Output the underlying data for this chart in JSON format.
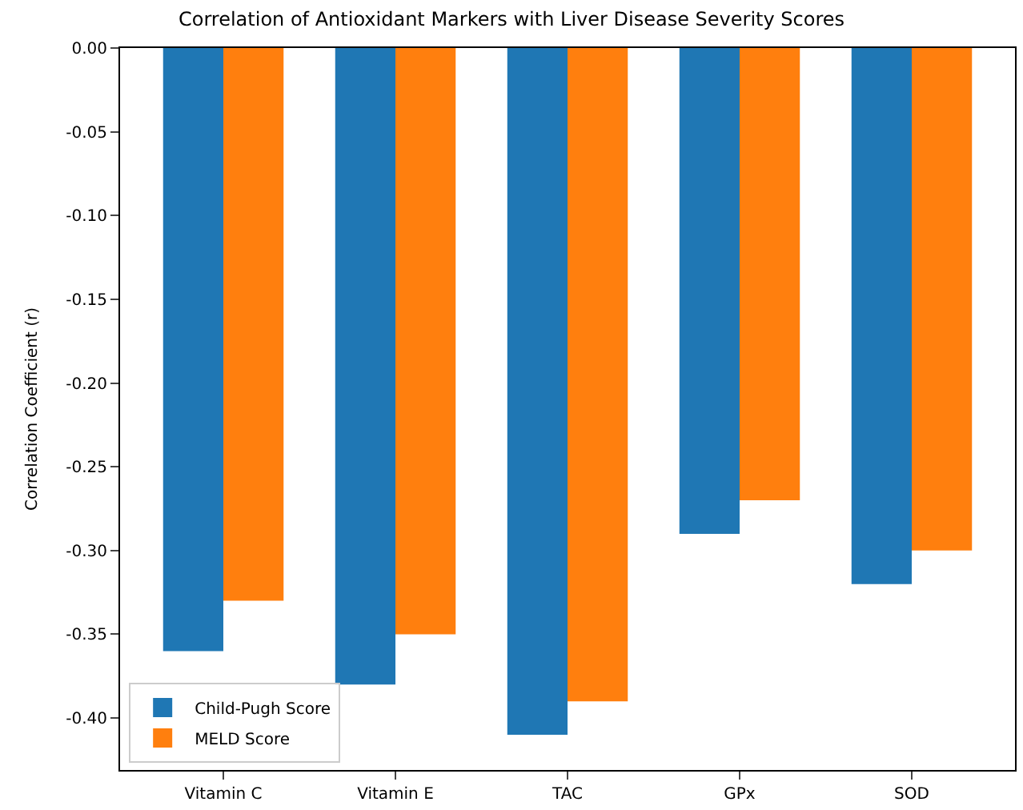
{
  "chart_data": {
    "type": "bar",
    "title": "Correlation of Antioxidant Markers with Liver Disease Severity Scores",
    "ylabel": "Correlation Coefficient (r)",
    "categories": [
      "Vitamin C",
      "Vitamin E",
      "TAC",
      "GPx",
      "SOD"
    ],
    "series": [
      {
        "name": "Child-Pugh Score",
        "color": "#1f77b4",
        "values": [
          -0.36,
          -0.38,
          -0.41,
          -0.29,
          -0.32
        ]
      },
      {
        "name": "MELD Score",
        "color": "#ff7f0e",
        "values": [
          -0.33,
          -0.35,
          -0.39,
          -0.27,
          -0.3
        ]
      }
    ],
    "ylim": [
      -0.431,
      0.0
    ],
    "yticks": [
      {
        "value": 0,
        "label": "0.00"
      },
      {
        "value": -0.05,
        "label": "-0.05"
      },
      {
        "value": -0.1,
        "label": "-0.10"
      },
      {
        "value": -0.15,
        "label": "-0.15"
      },
      {
        "value": -0.2,
        "label": "-0.20"
      },
      {
        "value": -0.25,
        "label": "-0.25"
      },
      {
        "value": -0.3,
        "label": "-0.30"
      },
      {
        "value": -0.35,
        "label": "-0.35"
      },
      {
        "value": -0.4,
        "label": "-0.40"
      }
    ],
    "legend": "bottom left"
  }
}
